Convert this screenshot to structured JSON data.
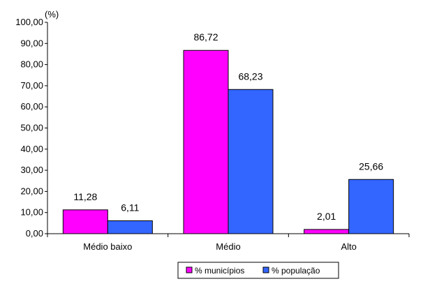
{
  "chart_data": {
    "type": "bar",
    "categories": [
      "Médio baixo",
      "Médio",
      "Alto"
    ],
    "series": [
      {
        "name": "% municípios",
        "values": [
          11.28,
          86.72,
          2.01
        ],
        "color": "#FF00FF",
        "labels": [
          "11,28",
          "86,72",
          "2,01"
        ]
      },
      {
        "name": "% população",
        "values": [
          6.11,
          68.23,
          25.66
        ],
        "color": "#3366FF",
        "labels": [
          "6,11",
          "68,23",
          "25,66"
        ]
      }
    ],
    "y_unit_label": "(%)",
    "ylim": [
      0,
      100
    ],
    "y_ticks": [
      0,
      10,
      20,
      30,
      40,
      50,
      60,
      70,
      80,
      90,
      100
    ],
    "y_tick_labels": [
      "0,00",
      "10,00",
      "20,00",
      "30,00",
      "40,00",
      "50,00",
      "60,00",
      "70,00",
      "80,00",
      "90,00",
      "100,00"
    ],
    "grid": false,
    "legend_position": "bottom-center"
  }
}
